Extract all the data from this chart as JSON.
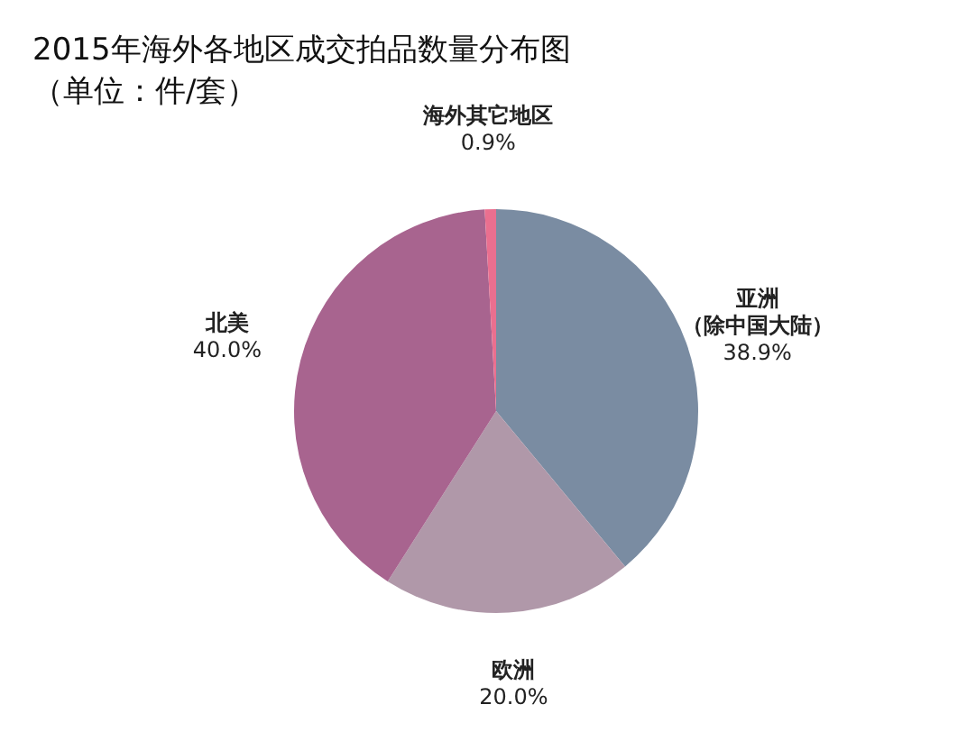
{
  "chart_data": {
    "type": "pie",
    "title": "2015年海外各地区成交拍品数量分布图",
    "subtitle": "（单位：件/套）",
    "categories": [
      "亚洲（除中国大陆）",
      "欧洲",
      "北美",
      "海外其它地区"
    ],
    "values": [
      38.9,
      20.0,
      40.0,
      0.9
    ],
    "value_labels": [
      "38.9%",
      "20.0%",
      "40.0%",
      "0.9%"
    ],
    "colors": [
      "#7a8ca2",
      "#b098a9",
      "#a8648f",
      "#ea6f8f"
    ]
  }
}
